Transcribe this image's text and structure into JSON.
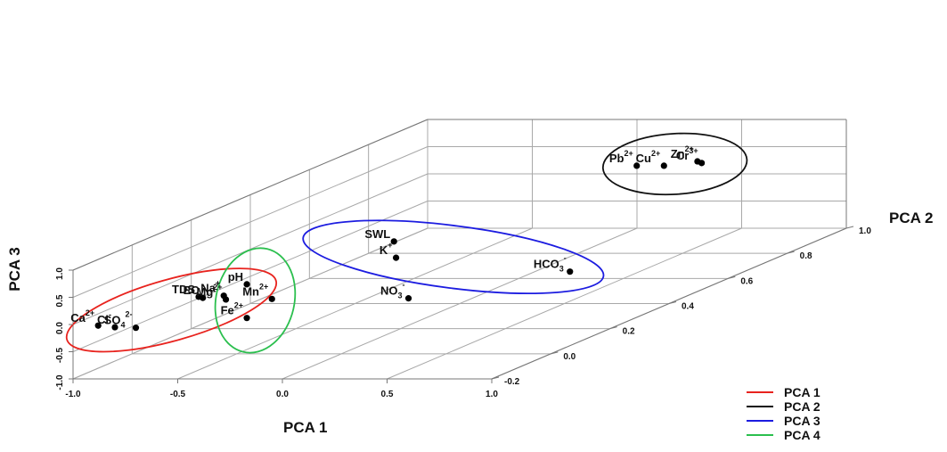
{
  "chart_data": {
    "type": "scatter",
    "axes": {
      "x": {
        "label": "PCA 1",
        "ticks": [
          "-1.0",
          "-0.5",
          "0.0",
          "0.5",
          "1.0"
        ]
      },
      "y": {
        "label": "PCA 2",
        "ticks": [
          "-0.2",
          "0.0",
          "0.2",
          "0.4",
          "0.6",
          "0.8",
          "1.0"
        ]
      },
      "z": {
        "label": "PCA 3",
        "ticks": [
          "-1.0",
          "-0.5",
          "0.0",
          "0.5",
          "1.0"
        ]
      }
    },
    "points": [
      {
        "id": "ca",
        "label": "Ca",
        "sup": "2+",
        "sub": "",
        "x": -0.88,
        "y": -0.2,
        "z": -0.02
      },
      {
        "id": "cl",
        "label": "Cl",
        "sup": "-",
        "sub": "",
        "x": -0.8,
        "y": -0.2,
        "z": -0.05
      },
      {
        "id": "so4",
        "label": "SO",
        "sup": "2-",
        "sub": "4",
        "x": -0.7,
        "y": -0.2,
        "z": -0.06
      },
      {
        "id": "tds",
        "label": "TDS",
        "sup": "",
        "sub": "",
        "x": -0.4,
        "y": -0.2,
        "z": 0.51
      },
      {
        "id": "ec",
        "label": "EC",
        "sup": "",
        "sub": "",
        "x": -0.38,
        "y": -0.2,
        "z": 0.49
      },
      {
        "id": "na",
        "label": "Na",
        "sup": "+",
        "sub": "",
        "x": -0.28,
        "y": -0.2,
        "z": 0.53
      },
      {
        "id": "mg",
        "label": "Mg",
        "sup": "2+",
        "sub": "",
        "x": -0.27,
        "y": -0.2,
        "z": 0.46
      },
      {
        "id": "ph",
        "label": "pH",
        "sup": "",
        "sub": "",
        "x": -0.17,
        "y": -0.2,
        "z": 0.74
      },
      {
        "id": "mn",
        "label": "Mn",
        "sup": "2+",
        "sub": "",
        "x": -0.05,
        "y": -0.2,
        "z": 0.47
      },
      {
        "id": "fe",
        "label": "Fe",
        "sup": "2+",
        "sub": "",
        "x": -0.17,
        "y": -0.2,
        "z": 0.12
      },
      {
        "id": "no3",
        "label": "NO",
        "sup": "-",
        "sub": "3",
        "x": 0.32,
        "y": 0.0,
        "z": 0.02
      },
      {
        "id": "swl",
        "label": "SWL",
        "sup": "",
        "sub": "",
        "x": 0.18,
        "y": 0.05,
        "z": 0.95
      },
      {
        "id": "k",
        "label": "K",
        "sup": "+",
        "sub": "",
        "x": 0.19,
        "y": 0.05,
        "z": 0.65
      },
      {
        "id": "hco3",
        "label": "HCO",
        "sup": "-",
        "sub": "3",
        "x": 0.95,
        "y": 0.1,
        "z": 0.28
      },
      {
        "id": "pb",
        "label": "Pb",
        "sup": "2+",
        "sub": "",
        "x": 0.14,
        "y": 0.9,
        "z": 0.38
      },
      {
        "id": "cu",
        "label": "Cu",
        "sup": "2+",
        "sub": "",
        "x": 0.27,
        "y": 0.9,
        "z": 0.38
      },
      {
        "id": "zn",
        "label": "Zn",
        "sup": "2+",
        "sub": "",
        "x": 0.43,
        "y": 0.9,
        "z": 0.46
      },
      {
        "id": "cr",
        "label": "Cr",
        "sup": "3+",
        "sub": "",
        "x": 0.45,
        "y": 0.9,
        "z": 0.43
      }
    ],
    "groups": [
      {
        "name": "PCA 1",
        "color": "#e8231e",
        "members": [
          "ca",
          "cl",
          "so4",
          "tds",
          "ec",
          "na",
          "mg"
        ]
      },
      {
        "name": "PCA 2",
        "color": "#111111",
        "members": [
          "pb",
          "cu",
          "zn",
          "cr"
        ]
      },
      {
        "name": "PCA 3",
        "color": "#1c1ce0",
        "members": [
          "swl",
          "k",
          "hco3"
        ]
      },
      {
        "name": "PCA 4",
        "color": "#2bbf4e",
        "members": [
          "ph",
          "mn",
          "fe"
        ]
      }
    ],
    "grid": true,
    "legend_position": "bottom-right"
  }
}
